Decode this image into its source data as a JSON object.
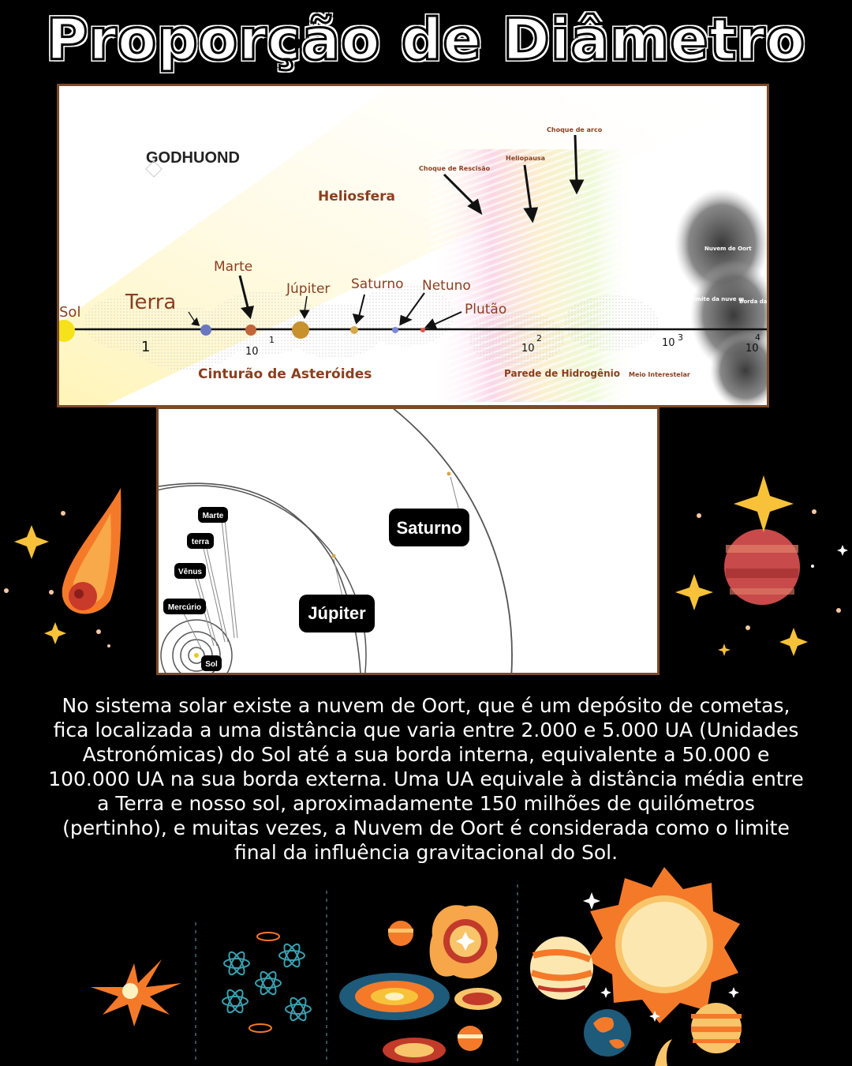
{
  "title": "Proporção de Diâmetro",
  "diagram1": {
    "watermark": "GODHUOND",
    "heliosphere": "Heliosfera",
    "termination_shock": "Choque de Rescisão",
    "heliopause": "Heliopausa",
    "bow_shock": "Choque de arco",
    "oort_cloud": "Nuvem de Oort",
    "cloud_limit": "Limite da nuve m",
    "cloud_edge": "Borda da Nuvem",
    "sun": "Sol",
    "earth": "Terra",
    "mars": "Marte",
    "jupiter": "Júpiter",
    "saturn": "Saturno",
    "neptune": "Netuno",
    "pluto": "Plutão",
    "asteroid_belt": "Cinturão de Asteróides",
    "hydrogen_wall": "Parede de Hidrogênio",
    "interstellar_medium": "Meio Interestelar",
    "scale": [
      {
        "base": "1",
        "exp": ""
      },
      {
        "base": "10",
        "exp": "1"
      },
      {
        "base": "10",
        "exp": "2"
      },
      {
        "base": "10",
        "exp": "3"
      },
      {
        "base": "10",
        "exp": "4"
      }
    ]
  },
  "diagram2": {
    "mars": "Marte",
    "earth": "terra",
    "venus": "Vênus",
    "mercury": "Mercúrio",
    "sun": "Sol",
    "jupiter": "Júpiter",
    "saturn": "Saturno"
  },
  "description": "No sistema solar existe a nuvem de Oort, que é um depósito de cometas, fica localizada a uma distância que varia entre 2.000 e 5.000 UA (Unidades Astronómicas) do Sol até a sua borda interna, equivalente a 50.000 e 100.000 UA na sua borda externa. Uma UA equivale à distância média entre a Terra e nosso sol, aproximadamente 150 milhões de quilómetros (pertinho), e muitas vezes, a Nuvem de Oort é considerada como o limite final da influência gravitacional do Sol.",
  "colors": {
    "accent_brown": "#8a3f1f",
    "frame": "#7a4a2a",
    "star_yellow": "#f7c23a",
    "comet_orange": "#f47a2a"
  }
}
